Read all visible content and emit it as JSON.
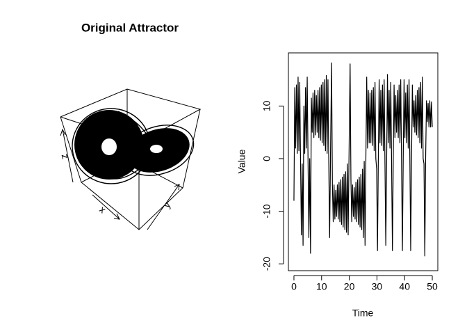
{
  "chart_data": [
    {
      "type": "line3d",
      "title": "Original Attractor",
      "xlabel": "x",
      "ylabel": "y",
      "zlabel": "z"
    },
    {
      "type": "line",
      "xlabel": "Time",
      "ylabel": "Value",
      "color": "#000000",
      "xlim": [
        -2,
        52
      ],
      "ylim": [
        -21.3,
        20.1
      ],
      "xticks": [
        0,
        10,
        20,
        30,
        40,
        50
      ],
      "yticks": [
        -20,
        -10,
        0,
        10
      ],
      "x": [
        0,
        0.3,
        0.6,
        0.9,
        1.2,
        1.5,
        1.8,
        2.1,
        2.4,
        2.7,
        3,
        3.3,
        3.6,
        3.9,
        4.2,
        4.5,
        4.8,
        5.1,
        5.4,
        5.7,
        6,
        6.3,
        6.6,
        6.9,
        7.2,
        7.5,
        7.8,
        8.1,
        8.4,
        8.7,
        9,
        9.3,
        9.6,
        9.9,
        10.2,
        10.5,
        10.8,
        11.1,
        11.4,
        11.7,
        12,
        12.3,
        12.6,
        12.9,
        13.2,
        13.6,
        13.9,
        14.2,
        14.5,
        14.8,
        15.1,
        15.4,
        15.7,
        16,
        16.3,
        16.6,
        16.9,
        17.2,
        17.5,
        17.8,
        18.1,
        18.4,
        18.7,
        19,
        19.3,
        19.6,
        19.9,
        20.3,
        20.6,
        20.9,
        21.2,
        21.5,
        21.8,
        22.1,
        22.4,
        22.7,
        23,
        23.3,
        23.6,
        23.9,
        24.2,
        24.5,
        24.8,
        25.1,
        25.4,
        25.7,
        26,
        26.3,
        26.6,
        26.9,
        27.2,
        27.5,
        27.8,
        28.1,
        28.4,
        28.7,
        29,
        29.3,
        29.6,
        29.9,
        30.2,
        30.5,
        30.8,
        31.1,
        31.4,
        31.7,
        32,
        32.3,
        32.6,
        32.9,
        33.2,
        33.5,
        33.8,
        34.1,
        34.4,
        34.7,
        35,
        35.3,
        35.6,
        35.9,
        36.2,
        36.5,
        36.8,
        37.1,
        37.4,
        37.7,
        38,
        38.3,
        38.6,
        38.9,
        39.2,
        39.5,
        39.8,
        40.1,
        40.4,
        40.7,
        41,
        41.3,
        41.6,
        41.9,
        42.2,
        42.5,
        42.8,
        43.1,
        43.4,
        43.7,
        44,
        44.3,
        44.6,
        44.9,
        45.2,
        45.5,
        45.8,
        46.1,
        46.4,
        46.7,
        47,
        47.3,
        47.6,
        47.9,
        48.2,
        48.5,
        48.8,
        49.1,
        49.4,
        49.7,
        50
      ],
      "values": [
        -8,
        13.5,
        2,
        14,
        1,
        15.5,
        1.5,
        14.5,
        -1,
        -14.5,
        -1,
        -16.5,
        10,
        1,
        13.5,
        2,
        15.5,
        -0.5,
        -15,
        0,
        -18,
        11.5,
        5,
        12.5,
        4,
        13,
        4.5,
        12,
        5,
        13,
        4,
        13.5,
        3.5,
        14,
        3,
        14.5,
        2.5,
        15,
        1.5,
        15.8,
        1,
        15,
        -1,
        -15,
        0,
        18.2,
        -5,
        -12,
        -5,
        -11.5,
        -6,
        -11,
        -5,
        -11.5,
        -4.5,
        -12,
        -4,
        -12.5,
        -3.5,
        -13,
        -3,
        -13.5,
        -2.5,
        -14,
        -1,
        -14.5,
        0,
        18,
        -4,
        -12,
        -5,
        -11,
        -5.5,
        -11.5,
        -4.5,
        -12,
        -4,
        -12.5,
        -3.5,
        -13,
        -3,
        -13.5,
        -2,
        -15,
        -0.5,
        -16.5,
        0,
        15.5,
        2,
        13,
        3,
        12.5,
        3,
        13,
        2.5,
        13.5,
        1.5,
        14.5,
        0,
        -2,
        -17.5,
        0,
        15,
        3,
        13,
        2.5,
        14,
        1.5,
        15,
        -1,
        -16.5,
        -1,
        16,
        3,
        13,
        2,
        14.5,
        -1,
        -17.5,
        0,
        14,
        4,
        12,
        5,
        13,
        4,
        14,
        3,
        15,
        -1,
        -17.5,
        0,
        15,
        4,
        12.5,
        3,
        14,
        2,
        15,
        0,
        -17.5,
        0,
        14,
        6,
        11,
        5,
        12,
        4.5,
        13,
        4,
        13.5,
        3,
        14.5,
        2,
        15.5,
        0,
        -1,
        -18.5,
        0,
        11,
        7,
        10.5,
        6,
        11,
        6,
        10.8,
        6
      ]
    }
  ]
}
